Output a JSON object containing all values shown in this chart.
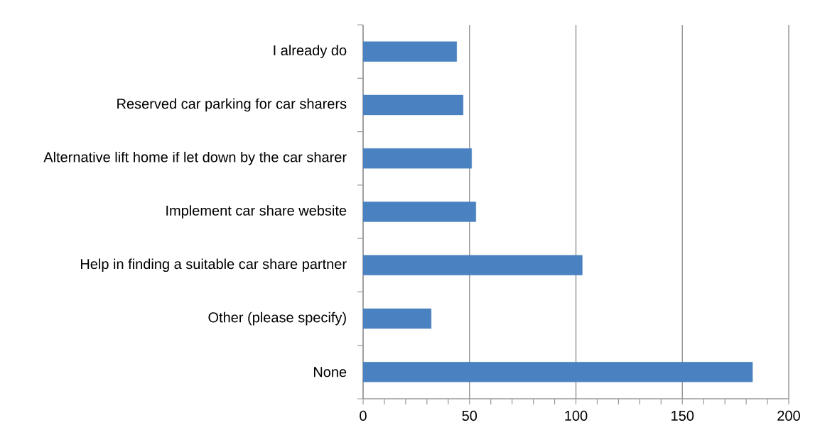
{
  "chart_data": {
    "type": "bar",
    "orientation": "horizontal",
    "categories": [
      "I already do",
      "Reserved car parking for car sharers",
      "Alternative lift home if let down by the car sharer",
      "Implement car share website",
      "Help in finding a suitable car share partner",
      "Other (please specify)",
      "None"
    ],
    "values": [
      44,
      47,
      51,
      53,
      103,
      32,
      183
    ],
    "color": "#4a81c1",
    "xlim": [
      0,
      200
    ],
    "xticks": [
      0,
      50,
      100,
      150,
      200
    ],
    "grid": "x"
  }
}
